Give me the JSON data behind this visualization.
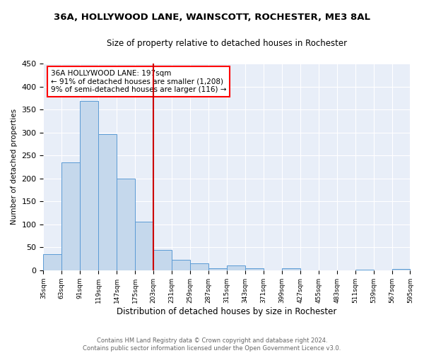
{
  "title": "36A, HOLLYWOOD LANE, WAINSCOTT, ROCHESTER, ME3 8AL",
  "subtitle": "Size of property relative to detached houses in Rochester",
  "xlabel": "Distribution of detached houses by size in Rochester",
  "ylabel": "Number of detached properties",
  "bar_values": [
    35,
    235,
    368,
    296,
    199,
    106,
    45,
    23,
    15,
    5,
    10,
    5,
    0,
    4,
    0,
    0,
    0,
    2,
    0,
    3
  ],
  "bin_edges": [
    35,
    63,
    91,
    119,
    147,
    175,
    203,
    231,
    259,
    287,
    315,
    343,
    371,
    399,
    427,
    455,
    483,
    511,
    539,
    567,
    595
  ],
  "tick_labels": [
    "35sqm",
    "63sqm",
    "91sqm",
    "119sqm",
    "147sqm",
    "175sqm",
    "203sqm",
    "231sqm",
    "259sqm",
    "287sqm",
    "315sqm",
    "343sqm",
    "371sqm",
    "399sqm",
    "427sqm",
    "455sqm",
    "483sqm",
    "511sqm",
    "539sqm",
    "567sqm",
    "595sqm"
  ],
  "property_line_x": 203,
  "bar_color": "#c5d8ec",
  "bar_edge_color": "#5b9bd5",
  "line_color": "#cc0000",
  "background_color": "#e8eef8",
  "grid_color": "#ffffff",
  "ylim": [
    0,
    450
  ],
  "yticks": [
    0,
    50,
    100,
    150,
    200,
    250,
    300,
    350,
    400,
    450
  ],
  "annotation_title": "36A HOLLYWOOD LANE: 197sqm",
  "annotation_line1": "← 91% of detached houses are smaller (1,208)",
  "annotation_line2": "9% of semi-detached houses are larger (116) →",
  "footer_line1": "Contains HM Land Registry data © Crown copyright and database right 2024.",
  "footer_line2": "Contains public sector information licensed under the Open Government Licence v3.0.",
  "title_fontsize": 9.5,
  "subtitle_fontsize": 8.5,
  "ylabel_fontsize": 7.5,
  "xlabel_fontsize": 8.5,
  "tick_fontsize": 6.5,
  "ytick_fontsize": 8,
  "ann_fontsize": 7.5,
  "footer_fontsize": 6
}
